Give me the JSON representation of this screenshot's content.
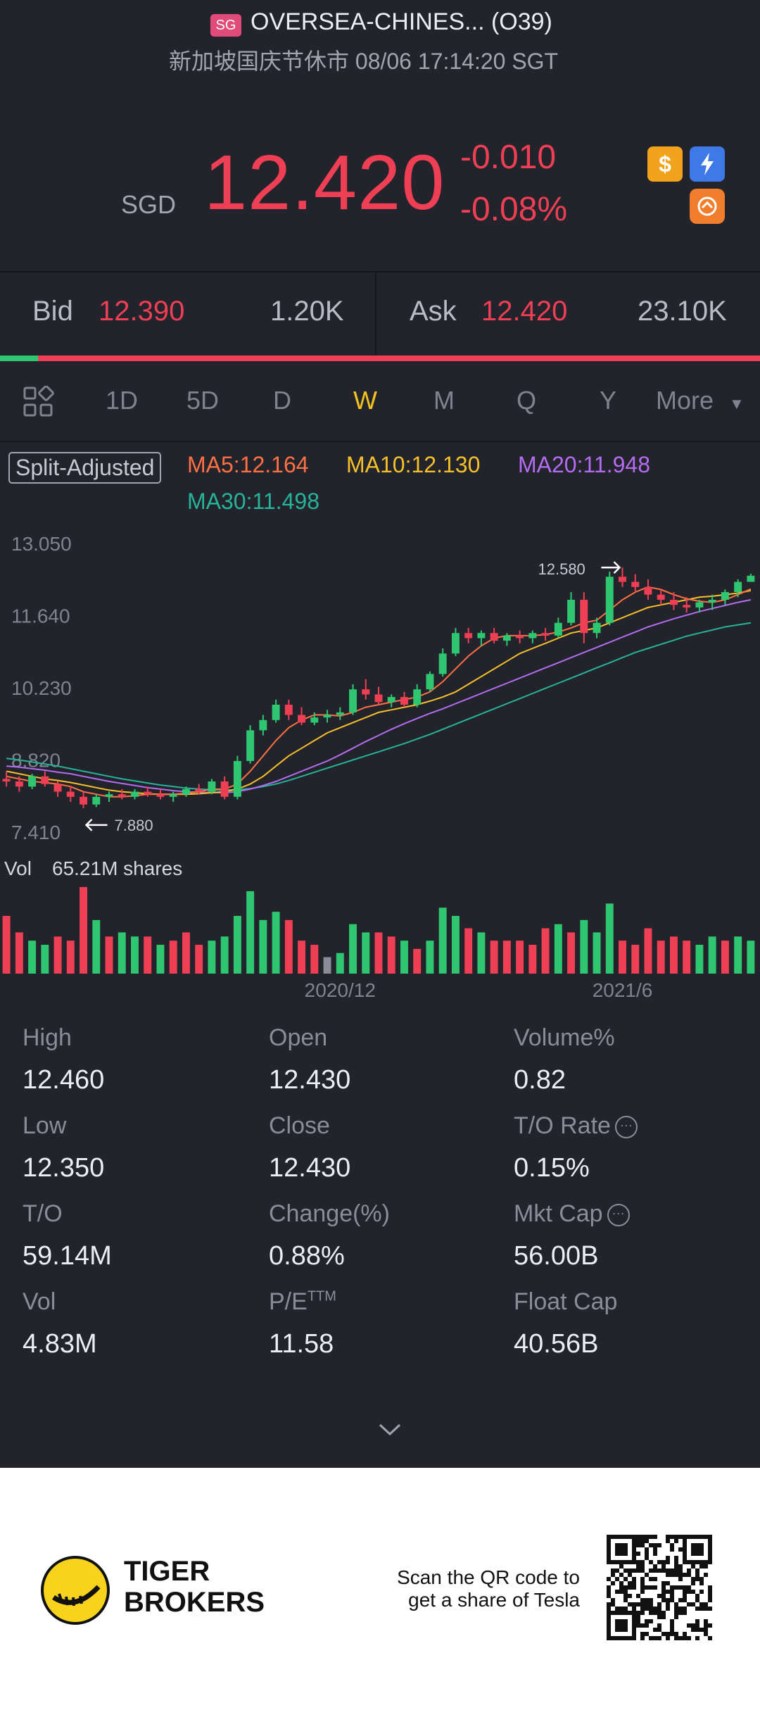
{
  "header": {
    "market_badge": "SG",
    "title": "OVERSEA-CHINES... (O39)",
    "subtitle": "新加坡国庆节休市 08/06 17:14:20 SGT"
  },
  "quote": {
    "currency": "SGD",
    "price": "12.420",
    "change": "-0.010",
    "change_pct": "-0.08%",
    "icons": [
      "dollar-icon",
      "bolt-icon",
      "exchange-icon"
    ]
  },
  "orderbook": {
    "bid_label": "Bid",
    "bid_price": "12.390",
    "bid_volume": "1.20K",
    "ask_label": "Ask",
    "ask_price": "12.420",
    "ask_volume": "23.10K",
    "bid_ratio": 0.05
  },
  "tabs": {
    "items": [
      "1D",
      "5D",
      "D",
      "W",
      "M",
      "Q",
      "Y",
      "More"
    ],
    "active": "W"
  },
  "indicators": {
    "split_label": "Split-Adjusted",
    "ma5": "MA5:12.164",
    "ma10": "MA10:12.130",
    "ma20": "MA20:11.948",
    "ma30": "MA30:11.498"
  },
  "chart_data": {
    "type": "candlestick",
    "period": "weekly",
    "y_ticks": [
      "13.050",
      "11.640",
      "10.230",
      "8.820",
      "7.410"
    ],
    "ylim": [
      7.41,
      13.05
    ],
    "x_ticks": [
      "2020/12",
      "2021/6"
    ],
    "high_marker": "12.580",
    "low_marker": "7.880",
    "volume_label": "Vol",
    "volume_value": "65.21M shares",
    "colors": {
      "up": "#2ec671",
      "down": "#ee3f55",
      "ma5": "#ff7043",
      "ma10": "#f5c02a",
      "ma20": "#b46cf0",
      "ma30": "#25b49a"
    },
    "candles": [
      [
        8.45,
        8.6,
        8.3,
        8.4
      ],
      [
        8.4,
        8.5,
        8.2,
        8.3
      ],
      [
        8.3,
        8.55,
        8.25,
        8.5
      ],
      [
        8.5,
        8.6,
        8.3,
        8.35
      ],
      [
        8.35,
        8.4,
        8.1,
        8.2
      ],
      [
        8.2,
        8.3,
        8.0,
        8.1
      ],
      [
        8.1,
        8.2,
        7.88,
        7.95
      ],
      [
        7.95,
        8.15,
        7.9,
        8.1
      ],
      [
        8.1,
        8.2,
        8.0,
        8.15
      ],
      [
        8.15,
        8.25,
        8.05,
        8.1
      ],
      [
        8.1,
        8.25,
        8.05,
        8.2
      ],
      [
        8.2,
        8.3,
        8.1,
        8.15
      ],
      [
        8.15,
        8.25,
        8.05,
        8.1
      ],
      [
        8.1,
        8.2,
        8.0,
        8.15
      ],
      [
        8.15,
        8.3,
        8.1,
        8.25
      ],
      [
        8.25,
        8.35,
        8.15,
        8.2
      ],
      [
        8.2,
        8.45,
        8.15,
        8.4
      ],
      [
        8.4,
        8.5,
        8.05,
        8.1
      ],
      [
        8.1,
        8.9,
        8.05,
        8.8
      ],
      [
        8.8,
        9.5,
        8.75,
        9.4
      ],
      [
        9.4,
        9.7,
        9.3,
        9.6
      ],
      [
        9.6,
        10.0,
        9.55,
        9.9
      ],
      [
        9.9,
        10.0,
        9.6,
        9.7
      ],
      [
        9.7,
        9.85,
        9.5,
        9.55
      ],
      [
        9.55,
        9.75,
        9.5,
        9.65
      ],
      [
        9.65,
        9.8,
        9.55,
        9.7
      ],
      [
        9.7,
        9.85,
        9.6,
        9.75
      ],
      [
        9.75,
        10.3,
        9.7,
        10.2
      ],
      [
        10.2,
        10.4,
        10.0,
        10.1
      ],
      [
        10.1,
        10.25,
        9.9,
        9.95
      ],
      [
        9.95,
        10.1,
        9.85,
        10.05
      ],
      [
        10.05,
        10.15,
        9.85,
        9.9
      ],
      [
        9.9,
        10.3,
        9.85,
        10.2
      ],
      [
        10.2,
        10.55,
        10.15,
        10.5
      ],
      [
        10.5,
        11.0,
        10.45,
        10.9
      ],
      [
        10.9,
        11.4,
        10.85,
        11.3
      ],
      [
        11.3,
        11.4,
        11.1,
        11.2
      ],
      [
        11.2,
        11.35,
        11.05,
        11.3
      ],
      [
        11.3,
        11.4,
        11.1,
        11.15
      ],
      [
        11.15,
        11.3,
        11.05,
        11.25
      ],
      [
        11.25,
        11.35,
        11.1,
        11.2
      ],
      [
        11.2,
        11.35,
        11.1,
        11.3
      ],
      [
        11.3,
        11.4,
        11.15,
        11.25
      ],
      [
        11.25,
        11.6,
        11.2,
        11.5
      ],
      [
        11.5,
        12.1,
        11.45,
        11.95
      ],
      [
        11.95,
        12.1,
        11.1,
        11.3
      ],
      [
        11.3,
        11.6,
        11.2,
        11.5
      ],
      [
        11.5,
        12.5,
        11.45,
        12.4
      ],
      [
        12.4,
        12.58,
        12.2,
        12.3
      ],
      [
        12.3,
        12.45,
        12.1,
        12.2
      ],
      [
        12.2,
        12.35,
        11.95,
        12.05
      ],
      [
        12.05,
        12.15,
        11.85,
        11.95
      ],
      [
        11.95,
        12.1,
        11.75,
        11.85
      ],
      [
        11.85,
        12.0,
        11.7,
        11.8
      ],
      [
        11.8,
        11.95,
        11.7,
        11.9
      ],
      [
        11.9,
        12.05,
        11.75,
        11.95
      ],
      [
        11.95,
        12.15,
        11.85,
        12.1
      ],
      [
        12.1,
        12.35,
        12.0,
        12.3
      ],
      [
        12.3,
        12.46,
        12.35,
        12.42
      ]
    ],
    "volumes": [
      [
        28,
        0
      ],
      [
        20,
        0
      ],
      [
        16,
        1
      ],
      [
        14,
        1
      ],
      [
        18,
        0
      ],
      [
        16,
        0
      ],
      [
        42,
        0
      ],
      [
        26,
        1
      ],
      [
        18,
        0
      ],
      [
        20,
        1
      ],
      [
        18,
        1
      ],
      [
        18,
        0
      ],
      [
        14,
        1
      ],
      [
        16,
        0
      ],
      [
        20,
        0
      ],
      [
        14,
        0
      ],
      [
        16,
        1
      ],
      [
        18,
        1
      ],
      [
        28,
        1
      ],
      [
        40,
        1
      ],
      [
        26,
        1
      ],
      [
        30,
        1
      ],
      [
        26,
        0
      ],
      [
        16,
        0
      ],
      [
        14,
        0
      ],
      [
        8,
        2
      ],
      [
        10,
        1
      ],
      [
        24,
        1
      ],
      [
        20,
        1
      ],
      [
        20,
        0
      ],
      [
        18,
        0
      ],
      [
        16,
        1
      ],
      [
        12,
        0
      ],
      [
        16,
        1
      ],
      [
        32,
        1
      ],
      [
        28,
        1
      ],
      [
        22,
        0
      ],
      [
        20,
        1
      ],
      [
        16,
        0
      ],
      [
        16,
        0
      ],
      [
        16,
        0
      ],
      [
        14,
        0
      ],
      [
        22,
        0
      ],
      [
        24,
        1
      ],
      [
        20,
        0
      ],
      [
        26,
        1
      ],
      [
        20,
        1
      ],
      [
        34,
        1
      ],
      [
        16,
        0
      ],
      [
        14,
        0
      ],
      [
        22,
        0
      ],
      [
        16,
        0
      ],
      [
        18,
        0
      ],
      [
        16,
        0
      ],
      [
        14,
        1
      ],
      [
        18,
        1
      ],
      [
        16,
        0
      ],
      [
        18,
        1
      ],
      [
        16,
        1
      ]
    ],
    "ma5": [
      8.5,
      8.45,
      8.4,
      8.38,
      8.35,
      8.3,
      8.2,
      8.15,
      8.1,
      8.1,
      8.12,
      8.15,
      8.15,
      8.15,
      8.17,
      8.2,
      8.25,
      8.25,
      8.35,
      8.6,
      8.9,
      9.2,
      9.45,
      9.6,
      9.7,
      9.7,
      9.68,
      9.75,
      9.85,
      9.9,
      9.95,
      10.0,
      10.05,
      10.15,
      10.35,
      10.6,
      10.85,
      11.05,
      11.2,
      11.25,
      11.25,
      11.25,
      11.27,
      11.32,
      11.4,
      11.5,
      11.55,
      11.75,
      11.95,
      12.1,
      12.2,
      12.15,
      12.05,
      11.97,
      11.92,
      11.9,
      11.95,
      12.05,
      12.16
    ],
    "ma10": [
      8.6,
      8.55,
      8.5,
      8.45,
      8.42,
      8.38,
      8.33,
      8.28,
      8.23,
      8.2,
      8.18,
      8.16,
      8.15,
      8.15,
      8.15,
      8.16,
      8.18,
      8.2,
      8.25,
      8.35,
      8.5,
      8.7,
      8.9,
      9.05,
      9.2,
      9.35,
      9.45,
      9.55,
      9.65,
      9.75,
      9.8,
      9.85,
      9.9,
      9.97,
      10.05,
      10.15,
      10.3,
      10.45,
      10.6,
      10.75,
      10.9,
      11.0,
      11.1,
      11.2,
      11.3,
      11.35,
      11.4,
      11.5,
      11.6,
      11.7,
      11.8,
      11.85,
      11.9,
      11.95,
      12.0,
      12.02,
      12.05,
      12.08,
      12.13
    ],
    "ma20": [
      8.7,
      8.68,
      8.65,
      8.62,
      8.58,
      8.55,
      8.5,
      8.45,
      8.4,
      8.36,
      8.32,
      8.28,
      8.25,
      8.22,
      8.2,
      8.19,
      8.18,
      8.18,
      8.2,
      8.25,
      8.32,
      8.4,
      8.5,
      8.6,
      8.7,
      8.8,
      8.92,
      9.05,
      9.18,
      9.3,
      9.42,
      9.53,
      9.63,
      9.73,
      9.82,
      9.92,
      10.02,
      10.12,
      10.22,
      10.32,
      10.42,
      10.52,
      10.62,
      10.72,
      10.82,
      10.92,
      11.02,
      11.12,
      11.22,
      11.32,
      11.42,
      11.5,
      11.58,
      11.65,
      11.72,
      11.78,
      11.84,
      11.9,
      11.95
    ],
    "ma30": [
      8.85,
      8.82,
      8.78,
      8.74,
      8.7,
      8.65,
      8.6,
      8.55,
      8.5,
      8.45,
      8.41,
      8.37,
      8.33,
      8.3,
      8.27,
      8.25,
      8.24,
      8.23,
      8.24,
      8.26,
      8.3,
      8.35,
      8.42,
      8.5,
      8.58,
      8.66,
      8.74,
      8.82,
      8.9,
      8.98,
      9.06,
      9.14,
      9.23,
      9.32,
      9.42,
      9.52,
      9.62,
      9.72,
      9.82,
      9.92,
      10.02,
      10.12,
      10.22,
      10.32,
      10.42,
      10.52,
      10.62,
      10.72,
      10.82,
      10.92,
      11.0,
      11.08,
      11.16,
      11.24,
      11.3,
      11.36,
      11.42,
      11.46,
      11.5
    ]
  },
  "stats": [
    {
      "label": "High",
      "value": "12.460"
    },
    {
      "label": "Open",
      "value": "12.430"
    },
    {
      "label": "Volume%",
      "value": "0.82"
    },
    {
      "label": "Low",
      "value": "12.350"
    },
    {
      "label": "Close",
      "value": "12.430"
    },
    {
      "label": "T/O Rate",
      "value": "0.15%",
      "info": true
    },
    {
      "label": "T/O",
      "value": "59.14M"
    },
    {
      "label": "Change(%)",
      "value": "0.88%"
    },
    {
      "label": "Mkt Cap",
      "value": "56.00B",
      "info": true
    },
    {
      "label": "Vol",
      "value": "4.83M"
    },
    {
      "label": "P/E",
      "label_sup": "TTM",
      "value": "11.58"
    },
    {
      "label": "Float Cap",
      "value": "40.56B"
    }
  ],
  "footer": {
    "brand_line1": "TIGER",
    "brand_line2": "BROKERS",
    "scan_line1": "Scan the QR code to",
    "scan_line2": "get a share of Tesla"
  }
}
